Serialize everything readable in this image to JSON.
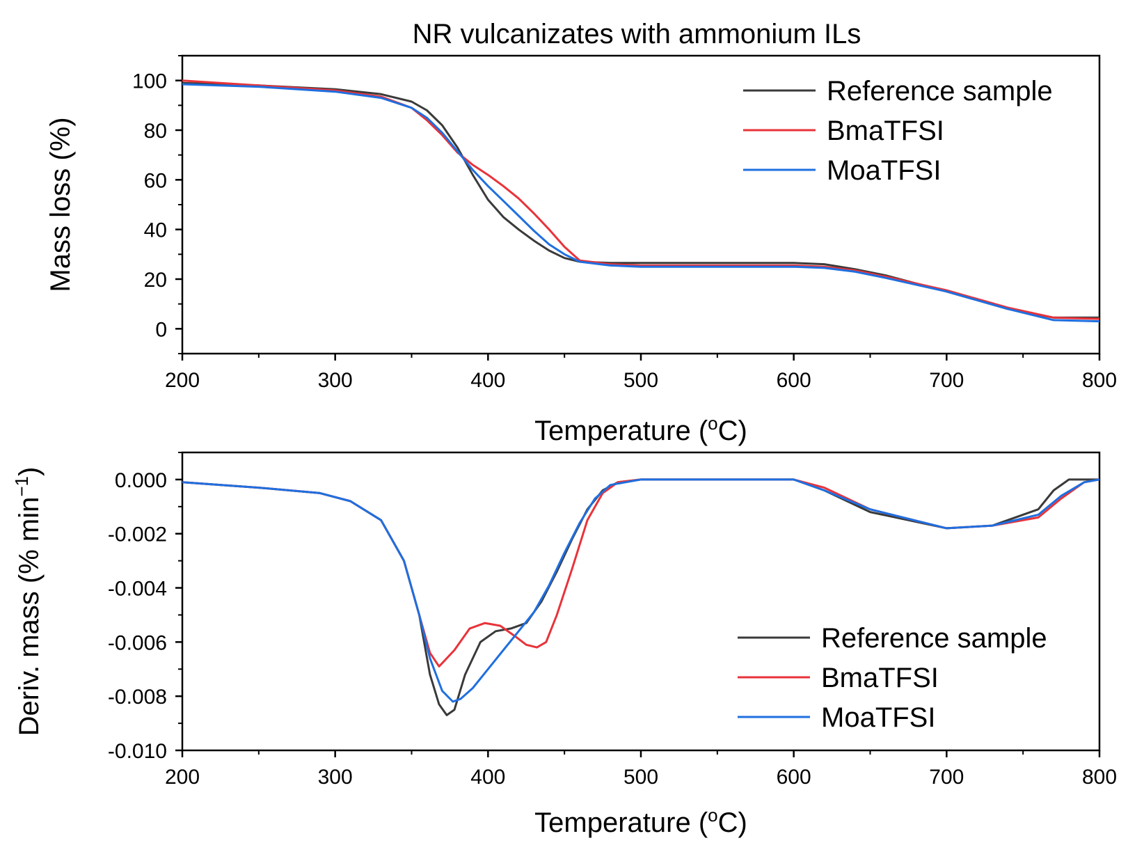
{
  "figure": {
    "title": "NR vulcanizates with ammonium ILs"
  },
  "chart_data": [
    {
      "type": "line",
      "title": "NR vulcanizates with ammonium ILs",
      "xlabel": "Temperature (",
      "xlabel_sup": "o",
      "xlabel_suffix": "C)",
      "ylabel": "Mass loss (%)",
      "xlim": [
        200,
        800
      ],
      "ylim": [
        -10,
        110
      ],
      "xticks": [
        200,
        300,
        400,
        500,
        600,
        700,
        800
      ],
      "xtick_labels": [
        "200",
        "300",
        "400",
        "500",
        "600",
        "700",
        "800"
      ],
      "yticks": [
        0,
        20,
        40,
        60,
        80,
        100
      ],
      "ytick_labels": [
        "0",
        "20",
        "40",
        "60",
        "80",
        "100"
      ],
      "legend_position": "top-right",
      "series": [
        {
          "name": "Reference sample",
          "color": "#3a3a3a",
          "x": [
            200,
            250,
            300,
            330,
            350,
            360,
            370,
            380,
            390,
            400,
            410,
            420,
            430,
            440,
            450,
            460,
            480,
            500,
            550,
            600,
            620,
            640,
            660,
            700,
            740,
            770,
            800
          ],
          "y": [
            99,
            98,
            96.5,
            94.5,
            91.5,
            88,
            82,
            73,
            62,
            52,
            45,
            40,
            35.5,
            31.5,
            28.5,
            27,
            26.5,
            26.5,
            26.5,
            26.5,
            26,
            24,
            21.5,
            15,
            8,
            4.5,
            4.5
          ]
        },
        {
          "name": "BmaTFSI",
          "color": "#e8333a",
          "x": [
            200,
            250,
            300,
            330,
            350,
            360,
            370,
            380,
            390,
            400,
            410,
            420,
            430,
            440,
            450,
            460,
            480,
            500,
            550,
            600,
            620,
            640,
            660,
            700,
            740,
            770,
            800
          ],
          "y": [
            100,
            98,
            96,
            93.5,
            89,
            84,
            78,
            71,
            66,
            62,
            57.5,
            52.5,
            46.5,
            40,
            33,
            27.5,
            26,
            25.5,
            25.5,
            25.5,
            25,
            23.5,
            21,
            15.5,
            8.5,
            4.5,
            4
          ]
        },
        {
          "name": "MoaTFSI",
          "color": "#1f6fe0",
          "x": [
            200,
            250,
            300,
            330,
            350,
            360,
            370,
            380,
            390,
            400,
            410,
            420,
            430,
            440,
            450,
            460,
            480,
            500,
            550,
            600,
            620,
            640,
            660,
            700,
            740,
            770,
            800
          ],
          "y": [
            98.5,
            97.5,
            95.5,
            93,
            89,
            85,
            79,
            71.5,
            64,
            57.5,
            51.5,
            45.5,
            39.5,
            34,
            30,
            27,
            25.5,
            25,
            25,
            25,
            24.5,
            23,
            20.5,
            15,
            8,
            3.5,
            3
          ]
        }
      ]
    },
    {
      "type": "line",
      "title": "",
      "xlabel": "Temperature (",
      "xlabel_sup": "o",
      "xlabel_suffix": "C)",
      "ylabel": "Deriv. mass (% min",
      "ylabel_sup": "−1",
      "ylabel_suffix": ")",
      "xlim": [
        200,
        800
      ],
      "ylim": [
        -0.01,
        0.001
      ],
      "xticks": [
        200,
        300,
        400,
        500,
        600,
        700,
        800
      ],
      "xtick_labels": [
        "200",
        "300",
        "400",
        "500",
        "600",
        "700",
        "800"
      ],
      "yticks": [
        0,
        -0.002,
        -0.004,
        -0.006,
        -0.008,
        -0.01
      ],
      "ytick_labels": [
        "0.000",
        "-0.002",
        "-0.004",
        "-0.006",
        "-0.008",
        "-0.010"
      ],
      "legend_position": "bottom-right",
      "series": [
        {
          "name": "Reference sample",
          "color": "#3a3a3a",
          "x": [
            200,
            250,
            290,
            310,
            330,
            345,
            355,
            362,
            368,
            373,
            378,
            385,
            395,
            405,
            415,
            425,
            435,
            445,
            455,
            465,
            475,
            485,
            500,
            550,
            600,
            620,
            650,
            700,
            730,
            760,
            770,
            780,
            800
          ],
          "y": [
            -0.0001,
            -0.0003,
            -0.0005,
            -0.0008,
            -0.0015,
            -0.003,
            -0.005,
            -0.0072,
            -0.0083,
            -0.0087,
            -0.0085,
            -0.0072,
            -0.006,
            -0.0056,
            -0.0055,
            -0.0053,
            -0.0045,
            -0.0034,
            -0.0022,
            -0.0011,
            -0.0004,
            -0.0001,
            0,
            0,
            0,
            -0.0004,
            -0.0012,
            -0.0018,
            -0.0017,
            -0.0011,
            -0.0004,
            0,
            0
          ]
        },
        {
          "name": "BmaTFSI",
          "color": "#e8333a",
          "x": [
            200,
            250,
            290,
            310,
            330,
            345,
            355,
            362,
            368,
            378,
            388,
            398,
            408,
            418,
            425,
            432,
            438,
            445,
            455,
            465,
            475,
            485,
            500,
            550,
            600,
            620,
            650,
            700,
            730,
            760,
            775,
            790,
            800
          ],
          "y": [
            -0.0001,
            -0.0003,
            -0.0005,
            -0.0008,
            -0.0015,
            -0.003,
            -0.005,
            -0.0064,
            -0.0069,
            -0.0063,
            -0.0055,
            -0.0053,
            -0.0054,
            -0.0058,
            -0.0061,
            -0.0062,
            -0.006,
            -0.005,
            -0.0033,
            -0.0015,
            -0.0005,
            -0.0001,
            0,
            0,
            0,
            -0.0003,
            -0.0011,
            -0.0018,
            -0.0017,
            -0.0014,
            -0.0007,
            -0.0001,
            0
          ]
        },
        {
          "name": "MoaTFSI",
          "color": "#1f6fe0",
          "x": [
            200,
            250,
            290,
            310,
            330,
            345,
            355,
            362,
            370,
            377,
            382,
            390,
            400,
            410,
            420,
            430,
            440,
            450,
            460,
            470,
            480,
            490,
            500,
            550,
            600,
            620,
            650,
            700,
            730,
            760,
            775,
            790,
            800
          ],
          "y": [
            -0.0001,
            -0.0003,
            -0.0005,
            -0.0008,
            -0.0015,
            -0.003,
            -0.005,
            -0.0066,
            -0.0078,
            -0.0082,
            -0.0081,
            -0.0077,
            -0.007,
            -0.0063,
            -0.0056,
            -0.0049,
            -0.0039,
            -0.0027,
            -0.0016,
            -0.0007,
            -0.0002,
            -0.0001,
            0,
            0,
            0,
            -0.0004,
            -0.0011,
            -0.0018,
            -0.0017,
            -0.0013,
            -0.0006,
            -0.0001,
            0
          ]
        }
      ]
    }
  ]
}
